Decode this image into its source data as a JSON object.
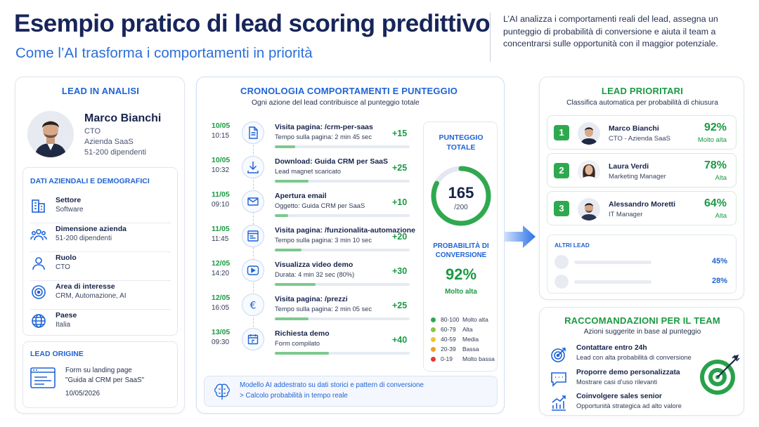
{
  "header": {
    "title": "Esempio pratico di lead scoring predittivo",
    "subtitle": "Come l’AI trasforma i comportamenti in priorità",
    "description": "L’AI analizza i comportamenti reali del lead, assegna un punteggio di probabilità di conversione e aiuta il team a concentrarsi sulle opportunità con il maggior potenziale."
  },
  "lead": {
    "section_title": "LEAD IN ANALISI",
    "name": "Marco Bianchi",
    "role": "CTO",
    "company": "Azienda SaaS",
    "size": "51-200 dipendenti"
  },
  "company_data": {
    "title": "DATI AZIENDALI E DEMOGRAFICI",
    "rows": [
      {
        "label": "Settore",
        "value": "Software",
        "icon": "building-icon"
      },
      {
        "label": "Dimensione azienda",
        "value": "51-200 dipendenti",
        "icon": "people-icon"
      },
      {
        "label": "Ruolo",
        "value": "CTO",
        "icon": "user-icon"
      },
      {
        "label": "Area di interesse",
        "value": "CRM, Automazione, AI",
        "icon": "target-icon"
      },
      {
        "label": "Paese",
        "value": "Italia",
        "icon": "globe-icon"
      }
    ]
  },
  "origin": {
    "title": "LEAD ORIGINE",
    "line1": "Form su landing page",
    "line2": "\"Guida al CRM per SaaS\"",
    "date": "10/05/2026"
  },
  "timeline": {
    "title": "CRONOLOGIA COMPORTAMENTI E PUNTEGGIO",
    "subtitle": "Ogni azione del lead contribuisce al punteggio totale",
    "items": [
      {
        "date": "10/05",
        "time": "10:15",
        "title": "Visita pagina: /crm-per-saas",
        "desc": "Tempo sulla pagina: 2 min 45 sec",
        "points": "+15",
        "fill": 0.15,
        "icon": "page-icon"
      },
      {
        "date": "10/05",
        "time": "10:32",
        "title": "Download: Guida CRM per SaaS",
        "desc": "Lead magnet scaricato",
        "points": "+25",
        "fill": 0.25,
        "icon": "download-icon"
      },
      {
        "date": "11/05",
        "time": "09:10",
        "title": "Apertura email",
        "desc": "Oggetto: Guida CRM per SaaS",
        "points": "+10",
        "fill": 0.1,
        "icon": "mail-icon"
      },
      {
        "date": "11/05",
        "time": "11:45",
        "title": "Visita pagina: /funzionalita-automazione",
        "desc": "Tempo sulla pagina: 3 min 10 sec",
        "points": "+20",
        "fill": 0.2,
        "icon": "browser-icon"
      },
      {
        "date": "12/05",
        "time": "14:20",
        "title": "Visualizza video demo",
        "desc": "Durata: 4 min 32 sec (80%)",
        "points": "+30",
        "fill": 0.3,
        "icon": "play-icon"
      },
      {
        "date": "12/05",
        "time": "16:05",
        "title": "Visita pagina: /prezzi",
        "desc": "Tempo sulla pagina: 2 min 05 sec",
        "points": "+25",
        "fill": 0.25,
        "icon": "euro-icon"
      },
      {
        "date": "13/05",
        "time": "09:30",
        "title": "Richiesta demo",
        "desc": "Form compilato",
        "points": "+40",
        "fill": 0.4,
        "icon": "calendar-icon"
      }
    ],
    "footer_line1": "Modello AI addestrato su dati storici e pattern di conversione",
    "footer_line2": "> Calcolo probabilità in tempo reale"
  },
  "score": {
    "title_line1": "PUNTEGGIO",
    "title_line2": "TOTALE",
    "value": "165",
    "max": "/200",
    "gauge_fraction": 0.825,
    "prob_title_line1": "PROBABILITÀ DI",
    "prob_title_line2": "CONVERSIONE",
    "probability": "92%",
    "level": "Molto alta",
    "legend": [
      {
        "range": "80-100",
        "name": "Molto alta",
        "color": "#2fa94f"
      },
      {
        "range": "60-79",
        "name": "Alta",
        "color": "#8cc63f"
      },
      {
        "range": "40-59",
        "name": "Media",
        "color": "#f2c230"
      },
      {
        "range": "20-39",
        "name": "Bassa",
        "color": "#f39c2a"
      },
      {
        "range": "0-19",
        "name": "Molto bassa",
        "color": "#e53935"
      }
    ]
  },
  "priority": {
    "title": "LEAD PRIORITARI",
    "subtitle": "Classifica automatica per probabilità di chiusura",
    "leads": [
      {
        "rank": "1",
        "name": "Marco Bianchi",
        "role": "CTO - Azienda SaaS",
        "pct": "92%",
        "level": "Molto alta"
      },
      {
        "rank": "2",
        "name": "Laura Verdi",
        "role": "Marketing Manager",
        "pct": "78%",
        "level": "Alta"
      },
      {
        "rank": "3",
        "name": "Alessandro Moretti",
        "role": "IT Manager",
        "pct": "64%",
        "level": "Alta"
      }
    ],
    "others_title": "ALTRI LEAD",
    "others": [
      {
        "pct": "45%"
      },
      {
        "pct": "28%"
      }
    ]
  },
  "recommendations": {
    "title": "RACCOMANDAZIONI PER IL TEAM",
    "subtitle": "Azioni suggerite in base al punteggio",
    "items": [
      {
        "title": "Contattare entro 24h",
        "desc": "Lead con alta probabilità di conversione",
        "icon": "target-icon"
      },
      {
        "title": "Proporre demo personalizzata",
        "desc": "Mostrare casi d’uso rilevanti",
        "icon": "chat-icon"
      },
      {
        "title": "Coinvolgere sales senior",
        "desc": "Opportunità strategica ad alto valore",
        "icon": "chart-icon"
      }
    ]
  }
}
